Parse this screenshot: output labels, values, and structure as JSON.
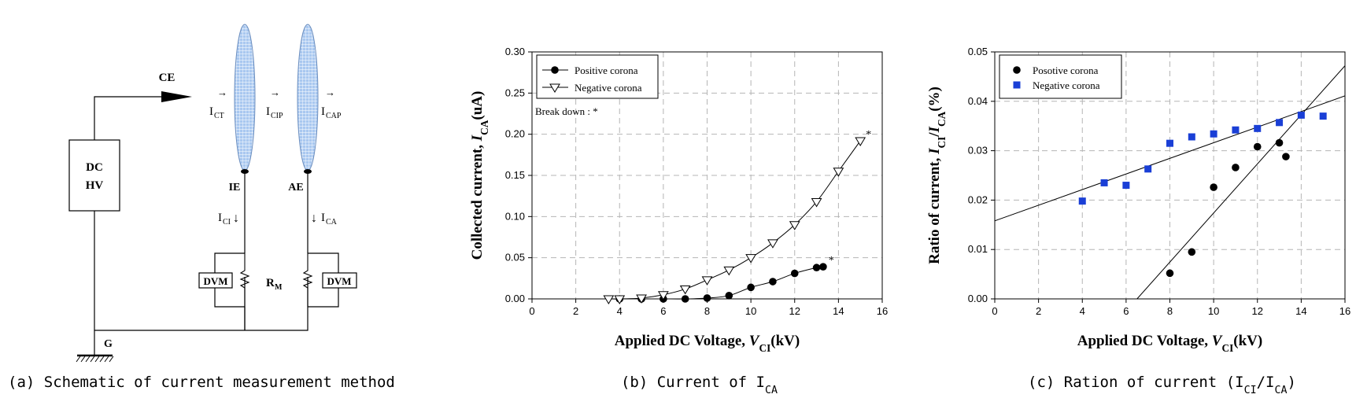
{
  "schematic": {
    "caption": "(a) Schematic of current measurement method",
    "source_label": "DC",
    "source_label2": "HV",
    "ce": "CE",
    "ie": "IE",
    "ae": "AE",
    "g": "G",
    "rm": "R",
    "rm_sub": "M",
    "dvm_left": "DVM",
    "dvm_right": "DVM",
    "i_ct": "I",
    "i_ct_sub": "CT",
    "i_cip": "I",
    "i_cip_sub": "CIP",
    "i_cap": "I",
    "i_cap_sub": "CAP",
    "i_ci": "I",
    "i_ci_sub": "CI",
    "i_ca": "I",
    "i_ca_sub": "CA",
    "colors": {
      "lens_fill": "#a9c8f0",
      "lens_grid": "#ffffff"
    }
  },
  "chart_data": [
    {
      "type": "line",
      "caption": "(b) Current of I",
      "caption_sub": "CA",
      "xlabel": "Applied DC Voltage, V",
      "xlabel_sub": "CI",
      "xlabel_unit": "(kV)",
      "ylabel": "Collected current, I",
      "ylabel_sub": "CA",
      "ylabel_unit": "(uA)",
      "xlim": [
        0,
        16
      ],
      "ylim": [
        0,
        0.3
      ],
      "xticks": [
        "0",
        "2",
        "4",
        "6",
        "8",
        "10",
        "12",
        "14",
        "16"
      ],
      "yticks": [
        "0.00",
        "0.05",
        "0.10",
        "0.15",
        "0.20",
        "0.25",
        "0.30"
      ],
      "grid": true,
      "legend_position": "top-left",
      "annotation": "Break down : *",
      "series": [
        {
          "name": "Positive corona",
          "marker": "filled-circle",
          "x": [
            4,
            5,
            6,
            7,
            8,
            9,
            10,
            11,
            12,
            13,
            13.3
          ],
          "y": [
            0.0,
            0.0,
            0.0,
            0.0,
            0.001,
            0.004,
            0.014,
            0.021,
            0.031,
            0.038,
            0.039
          ],
          "breakdown_x": 13.3,
          "breakdown_y": 0.039
        },
        {
          "name": "Negative corona",
          "marker": "open-triangle-down",
          "x": [
            3.5,
            4,
            5,
            6,
            7,
            8,
            9,
            10,
            11,
            12,
            13,
            14,
            15
          ],
          "y": [
            0.0,
            0.0,
            0.001,
            0.005,
            0.012,
            0.023,
            0.035,
            0.05,
            0.068,
            0.09,
            0.118,
            0.155,
            0.192
          ],
          "breakdown_x": 15,
          "breakdown_y": 0.192
        }
      ]
    },
    {
      "type": "scatter",
      "caption": "(c) Ration of current (I",
      "caption_sub1": "CI",
      "caption_mid": "/I",
      "caption_sub2": "CA",
      "caption_end": ")",
      "xlabel": "Applied DC Voltage, V",
      "xlabel_sub": "CI",
      "xlabel_unit": "(kV)",
      "ylabel": "Ratio of current, I",
      "ylabel_sub1": "CI",
      "ylabel_mid": "/I",
      "ylabel_sub2": "CA",
      "ylabel_unit": "(%)",
      "xlim": [
        0,
        16
      ],
      "ylim": [
        0,
        0.05
      ],
      "xticks": [
        "0",
        "2",
        "4",
        "6",
        "8",
        "10",
        "12",
        "14",
        "16"
      ],
      "yticks": [
        "0.00",
        "0.01",
        "0.02",
        "0.03",
        "0.04",
        "0.05"
      ],
      "grid": true,
      "legend_position": "top-left",
      "series": [
        {
          "name": "Posotive corona",
          "marker": "filled-circle",
          "color": "#000000",
          "x": [
            8,
            9,
            10,
            11,
            12,
            13,
            13.3
          ],
          "y": [
            0.0052,
            0.0095,
            0.0226,
            0.0266,
            0.0308,
            0.0316,
            0.0288
          ],
          "fit_line": {
            "x": [
              6.5,
              16
            ],
            "y": [
              0.0,
              0.0472
            ]
          }
        },
        {
          "name": "Negative corona",
          "marker": "filled-square",
          "color": "#1a3fd6",
          "x": [
            4,
            5,
            6,
            7,
            8,
            9,
            10,
            11,
            12,
            13,
            14,
            15
          ],
          "y": [
            0.0198,
            0.0235,
            0.023,
            0.0263,
            0.0315,
            0.0328,
            0.0334,
            0.0342,
            0.0345,
            0.0357,
            0.0372,
            0.037
          ],
          "fit_line": {
            "x": [
              0,
              16
            ],
            "y": [
              0.0158,
              0.0411
            ]
          }
        }
      ]
    }
  ]
}
